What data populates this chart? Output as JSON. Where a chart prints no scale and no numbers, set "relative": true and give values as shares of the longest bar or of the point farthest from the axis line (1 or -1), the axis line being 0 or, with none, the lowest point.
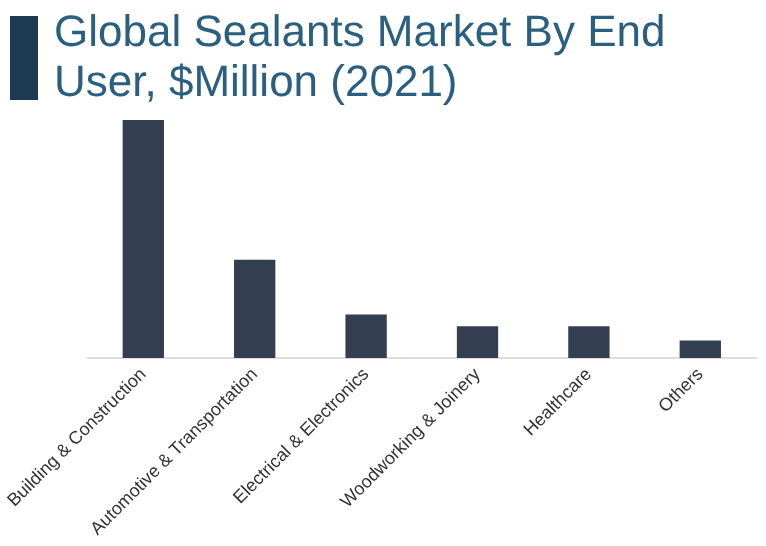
{
  "chart_data": {
    "type": "bar",
    "title": "Global Sealants Market By End User, $Million (2021)",
    "categories": [
      "Building & Construction",
      "Automotive & Transportation",
      "Electrical & Electronics",
      "Woodworking & Joinery",
      "Healthcare",
      "Others"
    ],
    "values": [
      1,
      0.41,
      0.18,
      0.13,
      0.13,
      0.07
    ],
    "color": "#333f50",
    "relative": true,
    "grid": false,
    "legend": false
  }
}
